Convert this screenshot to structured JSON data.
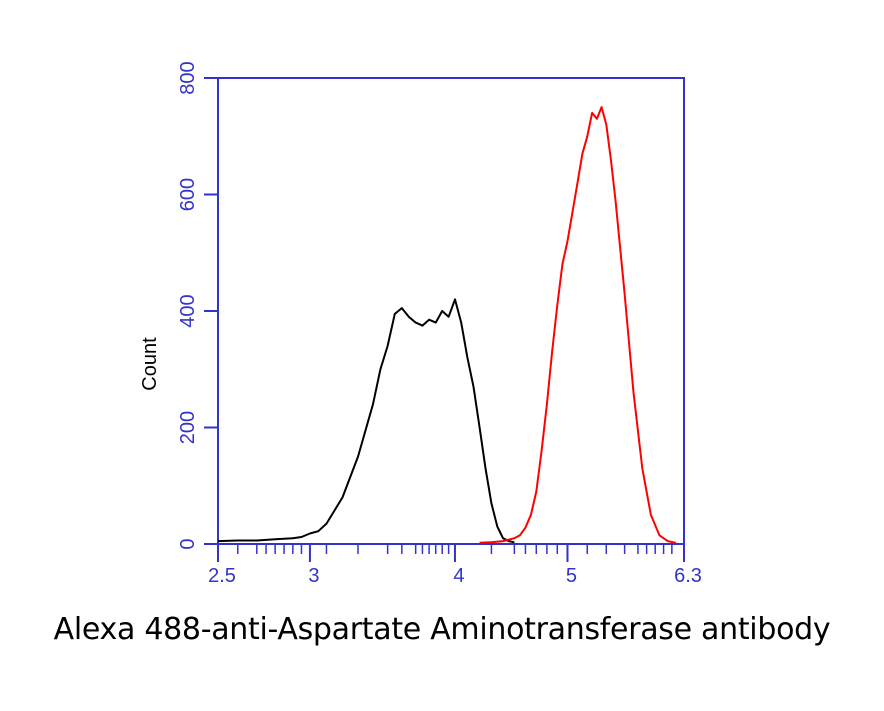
{
  "caption": "Alexa 488-anti-Aspartate Aminotransferase antibody",
  "chart_data": {
    "type": "line",
    "title": "",
    "xlabel": "",
    "ylabel": "Count",
    "ylim": [
      0,
      800
    ],
    "xlim": [
      2.5,
      6.3
    ],
    "x_scale": "log",
    "yticks": [
      "0",
      "200",
      "400",
      "600",
      "800"
    ],
    "ytick_values": [
      0,
      200,
      400,
      600,
      800
    ],
    "xticks": [
      "2.5",
      "3",
      "4",
      "5",
      "6.3"
    ],
    "xtick_values": [
      2.5,
      3,
      4,
      5,
      6.3
    ],
    "grid": false,
    "axis_color": "#3333cc",
    "series": [
      {
        "color": "#000000",
        "x": [
          2.5,
          2.6,
          2.7,
          2.8,
          2.9,
          2.95,
          3.0,
          3.05,
          3.1,
          3.2,
          3.3,
          3.4,
          3.45,
          3.5,
          3.55,
          3.6,
          3.65,
          3.7,
          3.75,
          3.8,
          3.85,
          3.9,
          3.95,
          4.0,
          4.05,
          4.1,
          4.15,
          4.2,
          4.25,
          4.3,
          4.35,
          4.4,
          4.45,
          4.5
        ],
        "y": [
          5,
          6,
          6,
          8,
          10,
          12,
          18,
          22,
          35,
          80,
          150,
          240,
          300,
          340,
          395,
          405,
          390,
          380,
          375,
          385,
          380,
          400,
          390,
          420,
          380,
          320,
          270,
          200,
          130,
          70,
          30,
          10,
          5,
          3
        ]
      },
      {
        "color": "#ff0000",
        "x": [
          4.2,
          4.3,
          4.4,
          4.5,
          4.55,
          4.6,
          4.65,
          4.7,
          4.75,
          4.8,
          4.85,
          4.9,
          4.95,
          5.0,
          5.05,
          5.1,
          5.15,
          5.2,
          5.25,
          5.3,
          5.35,
          5.4,
          5.45,
          5.5,
          5.6,
          5.7,
          5.8,
          5.9,
          6.0,
          6.1,
          6.2
        ],
        "y": [
          2,
          3,
          5,
          10,
          15,
          28,
          50,
          90,
          160,
          240,
          330,
          410,
          480,
          520,
          570,
          620,
          670,
          700,
          740,
          730,
          750,
          720,
          660,
          590,
          430,
          260,
          130,
          50,
          15,
          5,
          2
        ]
      }
    ]
  }
}
